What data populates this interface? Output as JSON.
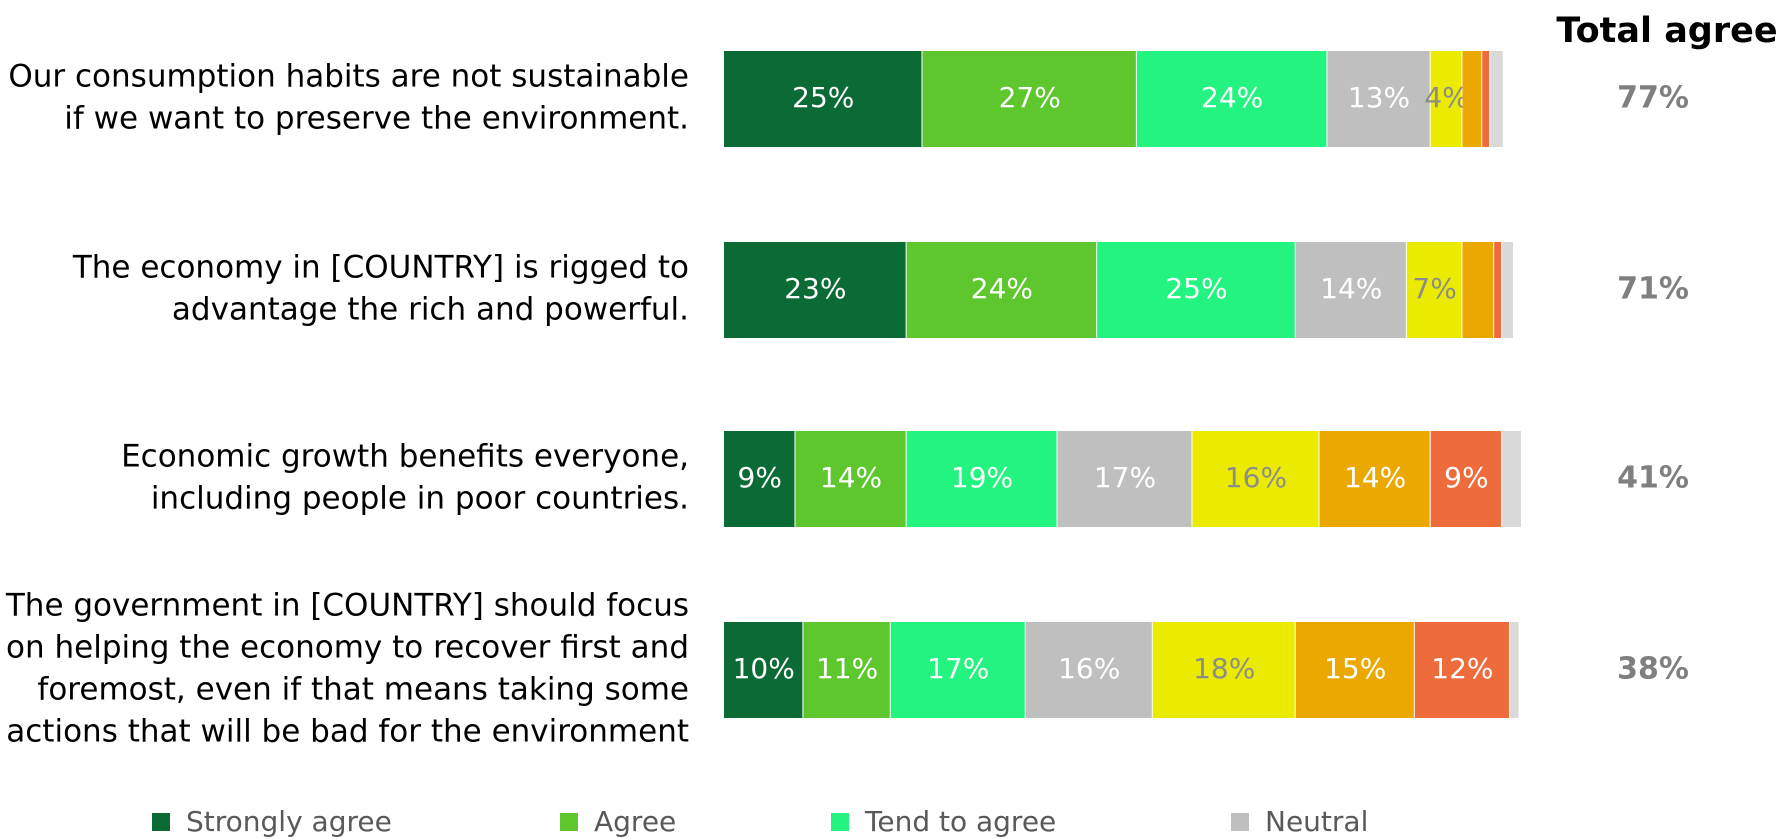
{
  "chart_data": {
    "type": "stacked-bar-horizontal",
    "categories": [
      [
        "Our consumption habits are not sustainable",
        "if we want to preserve the environment."
      ],
      [
        "The economy in [COUNTRY] is rigged to",
        "advantage the rich and powerful."
      ],
      [
        "Economic growth benefits everyone,",
        "including people in poor countries."
      ],
      [
        "The government in [COUNTRY] should focus",
        "on helping the economy to recover first and",
        "foremost, even if that means taking some",
        "actions that will be bad for the environment"
      ]
    ],
    "xlim": [
      0,
      100
    ],
    "series": [
      {
        "name": "Strongly agree",
        "color": "#0b6b35",
        "label_color": "#ffffff",
        "values": [
          25,
          23,
          9,
          10
        ],
        "value_labels": [
          "25%",
          "23%",
          "9%",
          "10%"
        ]
      },
      {
        "name": "Agree",
        "color": "#5ec72e",
        "label_color": "#ffffff",
        "values": [
          27,
          24,
          14,
          11
        ],
        "value_labels": [
          "27%",
          "24%",
          "14%",
          "11%"
        ]
      },
      {
        "name": "Tend to agree",
        "color": "#22f47f",
        "label_color": "#ffffff",
        "values": [
          24,
          25,
          19,
          17
        ],
        "value_labels": [
          "24%",
          "25%",
          "19%",
          "17%"
        ]
      },
      {
        "name": "Neutral",
        "color": "#bfbfbf",
        "label_color": "#ffffff",
        "values": [
          13,
          14,
          17,
          16
        ],
        "value_labels": [
          "13%",
          "14%",
          "17%",
          "16%"
        ]
      },
      {
        "color": "#ebeb00",
        "label_color": "#8c8c8c",
        "values": [
          4,
          7,
          16,
          18
        ],
        "value_labels": [
          "4%",
          "7%",
          "16%",
          "18%"
        ]
      },
      {
        "color": "#eaa800",
        "label_color": "#ffffff",
        "values": [
          2.5,
          4,
          14,
          15
        ],
        "value_labels": [
          null,
          null,
          "14%",
          "15%"
        ]
      },
      {
        "color": "#ee6b3b",
        "label_color": "#ffffff",
        "values": [
          1,
          1,
          9,
          12
        ],
        "value_labels": [
          null,
          null,
          "9%",
          "12%"
        ]
      },
      {
        "color": "#d9d9d9",
        "label_color": "#ffffff",
        "values": [
          1.7,
          1.5,
          2.5,
          1.2
        ],
        "value_labels": [
          null,
          null,
          null,
          null
        ]
      }
    ],
    "total_agree": {
      "title": "Total agree",
      "values": [
        77,
        71,
        41,
        38
      ],
      "value_labels": [
        "77%",
        "71%",
        "41%",
        "38%"
      ]
    }
  }
}
